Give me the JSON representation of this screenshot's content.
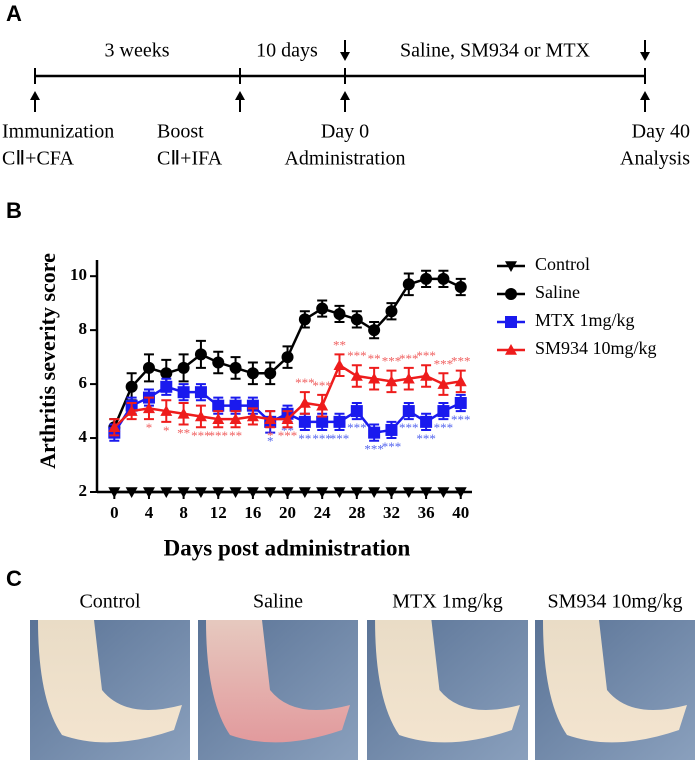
{
  "panel_labels": [
    "A",
    "B",
    "C"
  ],
  "timeline": {
    "periods": [
      "3 weeks",
      "10 days",
      "Saline, SM934 or MTX"
    ],
    "events": [
      [
        "Immunization",
        "CⅡ+CFA"
      ],
      [
        "Boost",
        "CⅡ+IFA"
      ],
      [
        "Day 0",
        "Administration"
      ],
      [
        "Day 40",
        "Analysis"
      ]
    ]
  },
  "chart_data": {
    "type": "line",
    "ylabel": "Arthritis severity score",
    "xlabel": "Days post administration",
    "x": [
      0,
      2,
      4,
      6,
      8,
      10,
      12,
      14,
      16,
      18,
      20,
      22,
      24,
      26,
      28,
      30,
      32,
      34,
      36,
      38,
      40
    ],
    "xlim": [
      -2,
      41.3
    ],
    "xticks": [
      0,
      4,
      8,
      12,
      16,
      20,
      24,
      28,
      32,
      36,
      40
    ],
    "ylim": [
      2,
      10.6
    ],
    "yticks": [
      2,
      4,
      6,
      8,
      10
    ],
    "legend": "right",
    "series": [
      {
        "name": "Control",
        "color": "#000000",
        "marker": "triangle-down",
        "values": [
          2,
          2,
          2,
          2,
          2,
          2,
          2,
          2,
          2,
          2,
          2,
          2,
          2,
          2,
          2,
          2,
          2,
          2,
          2,
          2,
          2
        ],
        "errors": [
          0,
          0,
          0,
          0,
          0,
          0,
          0,
          0,
          0,
          0,
          0,
          0,
          0,
          0,
          0,
          0,
          0,
          0,
          0,
          0,
          0
        ],
        "significance": [
          null,
          null,
          null,
          null,
          null,
          null,
          null,
          null,
          null,
          null,
          null,
          null,
          null,
          null,
          null,
          null,
          null,
          null,
          null,
          null,
          null
        ]
      },
      {
        "name": "Saline",
        "color": "#000000",
        "marker": "circle",
        "values": [
          4.4,
          5.9,
          6.6,
          6.4,
          6.6,
          7.1,
          6.8,
          6.6,
          6.4,
          6.4,
          7.0,
          8.4,
          8.8,
          8.6,
          8.4,
          8.0,
          8.7,
          9.7,
          9.9,
          9.9,
          9.6
        ],
        "errors": [
          0.3,
          0.5,
          0.5,
          0.5,
          0.5,
          0.5,
          0.4,
          0.4,
          0.4,
          0.4,
          0.4,
          0.3,
          0.3,
          0.3,
          0.3,
          0.3,
          0.3,
          0.4,
          0.3,
          0.3,
          0.3
        ],
        "significance": [
          null,
          null,
          null,
          null,
          null,
          null,
          null,
          null,
          null,
          null,
          null,
          null,
          null,
          null,
          null,
          null,
          null,
          null,
          null,
          null,
          null
        ]
      },
      {
        "name": "MTX 1mg/kg",
        "color": "#1a1aee",
        "marker": "square",
        "values": [
          4.2,
          5.2,
          5.5,
          5.9,
          5.7,
          5.7,
          5.2,
          5.2,
          5.2,
          4.6,
          4.9,
          4.6,
          4.6,
          4.6,
          5.0,
          4.2,
          4.3,
          5.0,
          4.6,
          5.0,
          5.3
        ],
        "errors": [
          0.3,
          0.3,
          0.3,
          0.3,
          0.3,
          0.3,
          0.3,
          0.3,
          0.3,
          0.4,
          0.3,
          0.3,
          0.3,
          0.3,
          0.3,
          0.3,
          0.3,
          0.3,
          0.3,
          0.3,
          0.3
        ],
        "significance": [
          null,
          null,
          null,
          null,
          null,
          null,
          "*",
          null,
          null,
          "*",
          "**",
          "**",
          "***",
          "***",
          "***",
          "***",
          "***",
          "***",
          "***",
          "***",
          "***"
        ]
      },
      {
        "name": "SM934 10mg/kg",
        "color": "#ee1c1c",
        "marker": "triangle",
        "values": [
          4.4,
          5.0,
          5.1,
          5.0,
          4.9,
          4.8,
          4.7,
          4.7,
          4.8,
          4.7,
          4.7,
          5.3,
          5.2,
          6.7,
          6.3,
          6.2,
          6.1,
          6.2,
          6.3,
          6.0,
          6.1
        ],
        "errors": [
          0.3,
          0.3,
          0.4,
          0.4,
          0.4,
          0.4,
          0.3,
          0.3,
          0.3,
          0.3,
          0.3,
          0.4,
          0.4,
          0.4,
          0.4,
          0.4,
          0.4,
          0.4,
          0.4,
          0.4,
          0.4
        ],
        "significance": [
          null,
          null,
          "*",
          "*",
          "**",
          "***",
          "***",
          "**",
          null,
          "*",
          "***",
          "***",
          "***",
          "**",
          "***",
          "**",
          "***",
          "***",
          "***",
          "***",
          "***"
        ]
      }
    ]
  },
  "photos": {
    "labels": [
      "Control",
      "Saline",
      "MTX 1mg/kg",
      "SM934 10mg/kg"
    ]
  }
}
